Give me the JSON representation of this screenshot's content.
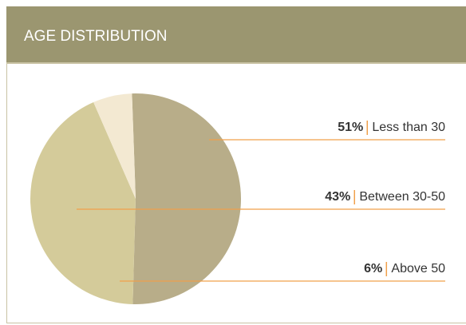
{
  "chart_data": {
    "type": "pie",
    "title": "AGE DISTRIBUTION",
    "categories": [
      "Less than 30",
      "Between 30-50",
      "Above 50"
    ],
    "values": [
      51,
      43,
      6
    ],
    "value_labels": [
      "51%",
      "43%",
      "6%"
    ],
    "colors": [
      "#b8ad89",
      "#d4cb9a",
      "#f3e9d2"
    ]
  }
}
